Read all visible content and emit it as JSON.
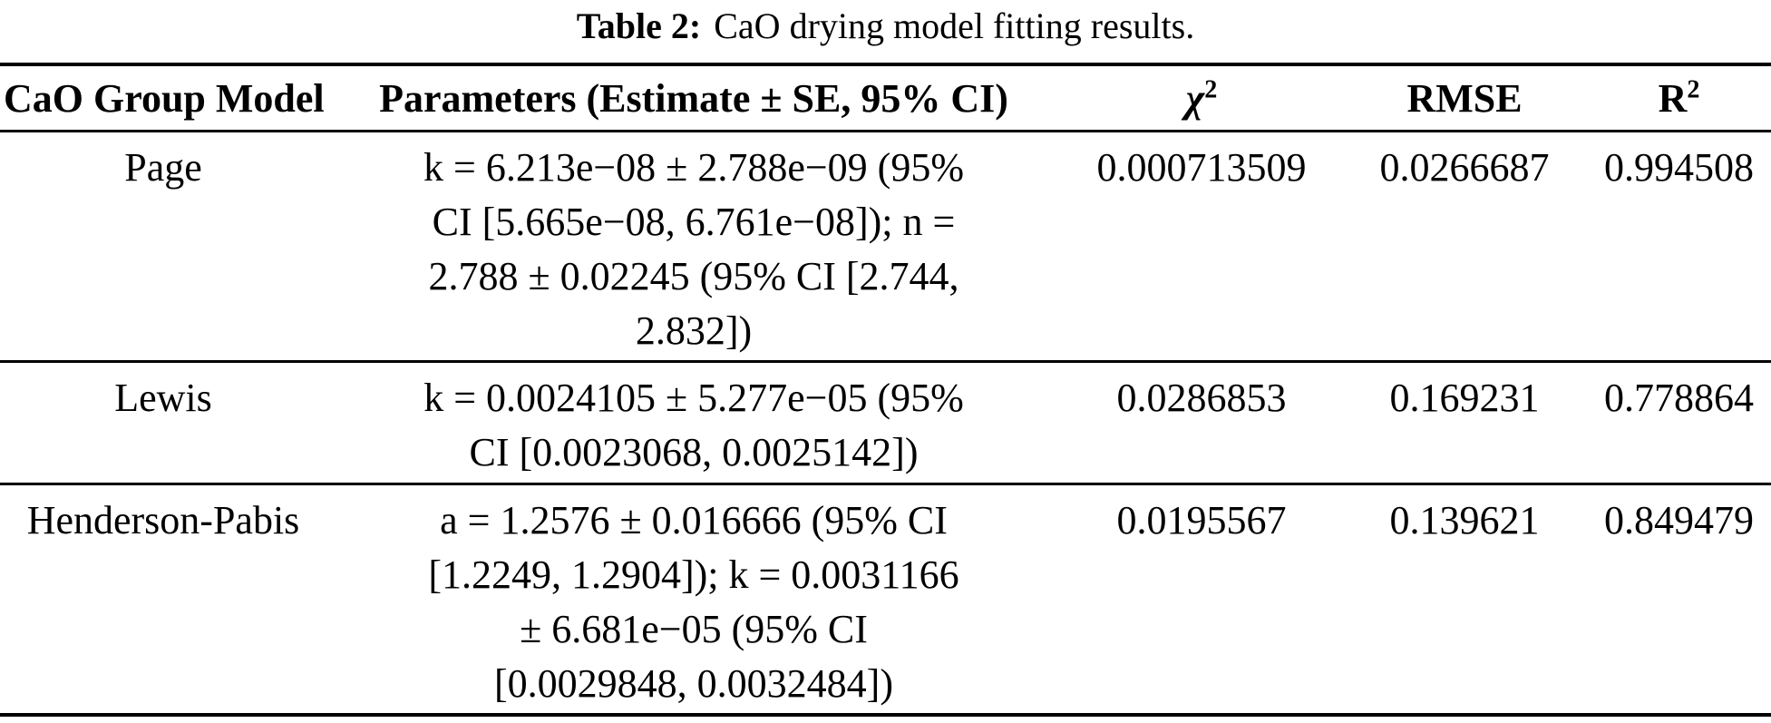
{
  "caption": {
    "label": "Table 2:",
    "text": "CaO drying model fitting results."
  },
  "table": {
    "headers": {
      "model": "CaO Group Model",
      "parameters": "Parameters (Estimate ± SE, 95% CI)",
      "chi_symbol": "χ",
      "chi_exponent": "2",
      "rmse": "RMSE",
      "r_symbol": "R",
      "r_exponent": "2"
    },
    "rows": [
      {
        "model": "Page",
        "parameters": "k = 6.213e−08 ± 2.788e−09 (95%\nCI [5.665e−08, 6.761e−08]); n =\n2.788 ± 0.02245 (95% CI [2.744,\n2.832])",
        "chi2": "0.000713509",
        "rmse": "0.0266687",
        "r2": "0.994508"
      },
      {
        "model": "Lewis",
        "parameters": "k = 0.0024105 ± 5.277e−05 (95%\nCI [0.0023068, 0.0025142])",
        "chi2": "0.0286853",
        "rmse": "0.169231",
        "r2": "0.778864"
      },
      {
        "model": "Henderson-Pabis",
        "parameters": "a = 1.2576 ± 0.016666 (95% CI\n[1.2249, 1.2904]); k = 0.0031166\n± 6.681e−05 (95% CI\n[0.0029848, 0.0032484])",
        "chi2": "0.0195567",
        "rmse": "0.139621",
        "r2": "0.849479"
      }
    ]
  }
}
